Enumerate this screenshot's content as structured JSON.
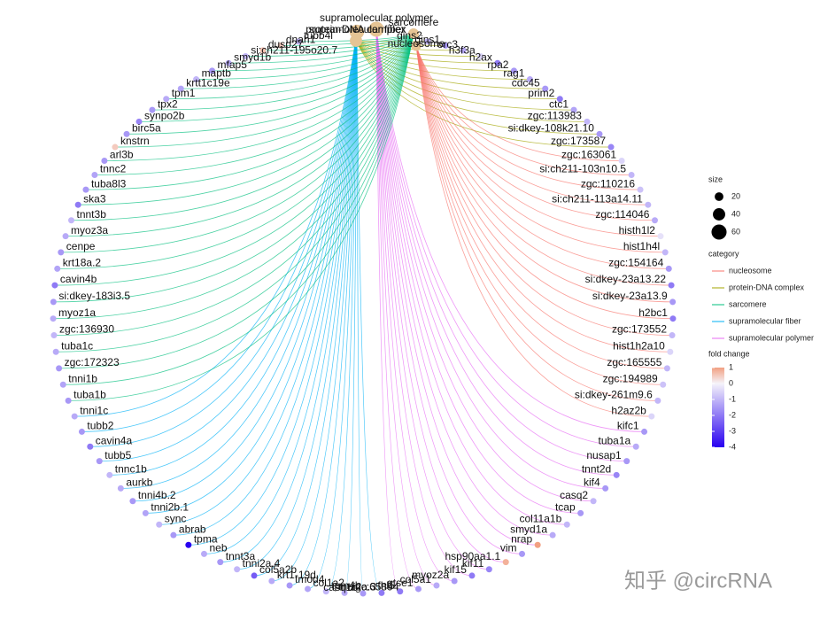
{
  "concepts": [
    {
      "name": "protein-DNA complex",
      "size": 40,
      "color": "#A3A500",
      "genes": [
        {
          "label": "gins2",
          "fold_change": -1
        },
        {
          "label": "gins1",
          "fold_change": -1.5
        },
        {
          "label": "orc3",
          "fold_change": -1.2
        },
        {
          "label": "h3f3a",
          "fold_change": -0.5
        },
        {
          "label": "h2ax",
          "fold_change": -2
        },
        {
          "label": "rpa2",
          "fold_change": -1.5
        },
        {
          "label": "rag1",
          "fold_change": -1.2
        },
        {
          "label": "cdc45",
          "fold_change": -1.5
        },
        {
          "label": "prim2",
          "fold_change": -2
        },
        {
          "label": "ctc1",
          "fold_change": -1.3
        },
        {
          "label": "zgc:113983",
          "fold_change": -1
        },
        {
          "label": "si:dkey-108k21.10",
          "fold_change": -1.5
        },
        {
          "label": "zgc:173587",
          "fold_change": -1.8
        }
      ]
    },
    {
      "name": "nucleosome",
      "size": 25,
      "color": "#F8766D",
      "genes": [
        {
          "label": "zgc:163061",
          "fold_change": -0.5
        },
        {
          "label": "si:ch211-103n10.5",
          "fold_change": -1
        },
        {
          "label": "zgc:110216",
          "fold_change": -0.8
        },
        {
          "label": "si:ch211-113a14.11",
          "fold_change": -1
        },
        {
          "label": "zgc:114046",
          "fold_change": -1.2
        },
        {
          "label": "histh1l2",
          "fold_change": -0.3
        },
        {
          "label": "hist1h4l",
          "fold_change": -1
        },
        {
          "label": "zgc:154164",
          "fold_change": -1.5
        },
        {
          "label": "si:dkey-23a13.22",
          "fold_change": -2
        },
        {
          "label": "si:dkey-23a13.9",
          "fold_change": -1.5
        },
        {
          "label": "h2bc1",
          "fold_change": -2
        },
        {
          "label": "zgc:173552",
          "fold_change": -1
        },
        {
          "label": "hist1h2a10",
          "fold_change": -0.5
        },
        {
          "label": "zgc:165555",
          "fold_change": -1
        },
        {
          "label": "zgc:194989",
          "fold_change": -0.8
        },
        {
          "label": "si:dkey-261m9.6",
          "fold_change": -1
        },
        {
          "label": "h2az2b",
          "fold_change": -0.5
        }
      ]
    },
    {
      "name": "supramolecular polymer",
      "size": 60,
      "color": "#E76BF3",
      "genes": [
        {
          "label": "kifc1",
          "fold_change": -1.5
        },
        {
          "label": "tuba1a",
          "fold_change": -1.2
        },
        {
          "label": "nusap1",
          "fold_change": -1.5
        },
        {
          "label": "tnnt2d",
          "fold_change": -1.8
        },
        {
          "label": "kif4",
          "fold_change": -1.5
        },
        {
          "label": "casq2",
          "fold_change": -1
        },
        {
          "label": "tcap",
          "fold_change": -1.5
        },
        {
          "label": "col11a1b",
          "fold_change": -1
        },
        {
          "label": "smyd1a",
          "fold_change": -1.2
        },
        {
          "label": "nrap",
          "fold_change": 1
        },
        {
          "label": "vim",
          "fold_change": -1.5
        },
        {
          "label": "hsp90aa1.1",
          "fold_change": 0.8
        },
        {
          "label": "kif11",
          "fold_change": -1.8
        },
        {
          "label": "kif15",
          "fold_change": -2
        },
        {
          "label": "myoz2a",
          "fold_change": -1.5
        },
        {
          "label": "col5a1",
          "fold_change": -1.2
        },
        {
          "label": "gtse1",
          "fold_change": -1.5
        },
        {
          "label": "fhl5",
          "fold_change": -2
        }
      ]
    },
    {
      "name": "supramolecular fiber",
      "size": 55,
      "color": "#00B0F6",
      "genes": [
        {
          "label": "tnni2a.3",
          "fold_change": -2
        },
        {
          "label": "casq1b",
          "fold_change": -1.5
        },
        {
          "label": "zgc:65894",
          "fold_change": -1.2
        },
        {
          "label": "tpm4b",
          "fold_change": -1
        },
        {
          "label": "col1a2",
          "fold_change": -1.3
        },
        {
          "label": "tmod4",
          "fold_change": -1.5
        },
        {
          "label": "krt1-19d",
          "fold_change": -1.2
        },
        {
          "label": "col5a2b",
          "fold_change": -2.5
        },
        {
          "label": "tnni2a.4",
          "fold_change": -1
        },
        {
          "label": "tnnt3a",
          "fold_change": -1.5
        },
        {
          "label": "neb",
          "fold_change": -1.2
        },
        {
          "label": "tpma",
          "fold_change": -4
        },
        {
          "label": "abrab",
          "fold_change": -1.5
        },
        {
          "label": "sync",
          "fold_change": -1
        },
        {
          "label": "tnni2b.1",
          "fold_change": -1.3
        },
        {
          "label": "tnni4b.2",
          "fold_change": -1.5
        },
        {
          "label": "aurkb",
          "fold_change": -1.2
        },
        {
          "label": "tnnc1b",
          "fold_change": -1
        },
        {
          "label": "tubb5",
          "fold_change": -1.5
        },
        {
          "label": "cavin4a",
          "fold_change": -2
        },
        {
          "label": "tubb2",
          "fold_change": -1.5
        },
        {
          "label": "tnni1c",
          "fold_change": -1.2
        }
      ]
    },
    {
      "name": "sarcomere",
      "size": 30,
      "color": "#00BF7D",
      "genes": [
        {
          "label": "tuba1b",
          "fold_change": -1.5
        },
        {
          "label": "tnni1b",
          "fold_change": -1.3
        },
        {
          "label": "zgc:172323",
          "fold_change": -1.5
        },
        {
          "label": "tuba1c",
          "fold_change": -1.2
        },
        {
          "label": "zgc:136930",
          "fold_change": -1
        },
        {
          "label": "myoz1a",
          "fold_change": -1.2
        },
        {
          "label": "si:dkey-183i3.5",
          "fold_change": -1.5
        },
        {
          "label": "cavin4b",
          "fold_change": -2
        },
        {
          "label": "krt18a.2",
          "fold_change": -1.3
        },
        {
          "label": "cenpe",
          "fold_change": -1.5
        },
        {
          "label": "myoz3a",
          "fold_change": -1.2
        },
        {
          "label": "tnnt3b",
          "fold_change": -1
        },
        {
          "label": "ska3",
          "fold_change": -2
        },
        {
          "label": "tuba8l3",
          "fold_change": -1.5
        },
        {
          "label": "tnnc2",
          "fold_change": -1.3
        },
        {
          "label": "arl3b",
          "fold_change": -1.5
        },
        {
          "label": "knstrn",
          "fold_change": 0.5
        },
        {
          "label": "birc5a",
          "fold_change": -1.5
        },
        {
          "label": "synpo2b",
          "fold_change": -1.8
        },
        {
          "label": "tpx2",
          "fold_change": -1.5
        },
        {
          "label": "tpm1",
          "fold_change": -1.2
        },
        {
          "label": "krtt1c19e",
          "fold_change": -1.3
        },
        {
          "label": "maptb",
          "fold_change": -1
        },
        {
          "label": "mfap5",
          "fold_change": -1.5
        },
        {
          "label": "smyd1b",
          "fold_change": -1.2
        },
        {
          "label": "si:ch211-195o20.7",
          "fold_change": -1
        },
        {
          "label": "dusp27",
          "fold_change": 0.6
        },
        {
          "label": "dnah1",
          "fold_change": 0.5
        },
        {
          "label": "tubb4l",
          "fold_change": -1
        }
      ]
    }
  ],
  "legend": {
    "size_title": "size",
    "sizes": [
      20,
      40,
      60
    ],
    "category_title": "category",
    "fold_change_title": "fold change",
    "fold_change_ticks": [
      1,
      0,
      -1,
      -2,
      -3,
      -4
    ]
  },
  "watermark": "知乎 @circRNA"
}
